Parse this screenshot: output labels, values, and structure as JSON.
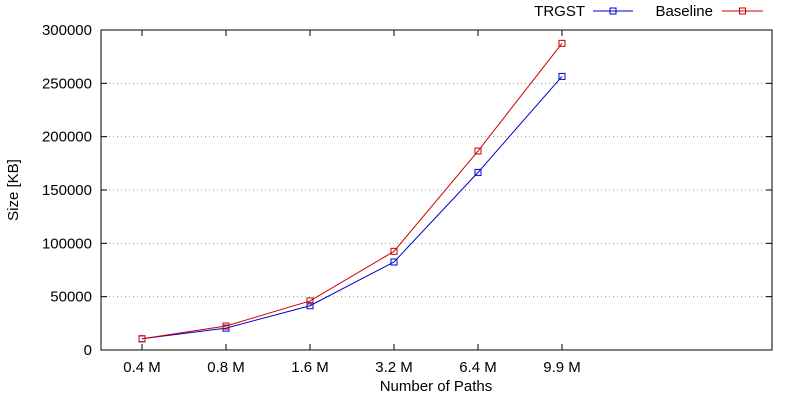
{
  "chart_data": {
    "type": "line",
    "title": "",
    "xlabel": "Number of Paths",
    "ylabel": "Size [KB]",
    "categories": [
      "0.4 M",
      "0.8 M",
      "1.6 M",
      "3.2 M",
      "6.4 M",
      "9.9 M"
    ],
    "ylim": [
      0,
      300000
    ],
    "yticks": [
      0,
      50000,
      100000,
      150000,
      200000,
      250000,
      300000
    ],
    "grid": "horizontal dotted",
    "legend_position": "top-right",
    "series": [
      {
        "name": "TRGST",
        "color": "#0000cc",
        "marker": "open-square",
        "values": [
          10500,
          20500,
          41500,
          82500,
          166500,
          256500
        ]
      },
      {
        "name": "Baseline",
        "color": "#cc0000",
        "marker": "open-square",
        "values": [
          10500,
          22500,
          46000,
          92500,
          186500,
          287500
        ]
      }
    ]
  }
}
